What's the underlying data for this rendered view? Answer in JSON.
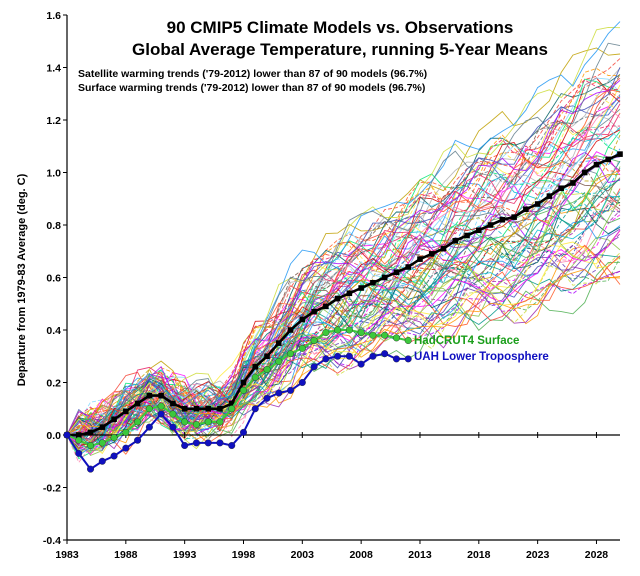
{
  "chart_data": {
    "type": "line",
    "title": "90 CMIP5 Climate Models vs. Observations",
    "subtitle": "Global Average Temperature, running 5-Year Means",
    "annotations": [
      "Satellite warming trends ('79-2012) lower than 87 of 90 models (96.7%)",
      "Surface warming trends ('79-2012) lower than 87 of 90 models (96.7%)"
    ],
    "xlabel": "",
    "ylabel": "Departure from 1979-83 Average (deg. C)",
    "xlim": [
      1983,
      2030
    ],
    "ylim": [
      -0.4,
      1.6
    ],
    "x_ticks": [
      "1983",
      "1988",
      "1993",
      "1998",
      "2003",
      "2008",
      "2013",
      "2018",
      "2023",
      "2028"
    ],
    "y_ticks": [
      "-0.4",
      "-0.2",
      "0.0",
      "0.2",
      "0.4",
      "0.6",
      "0.8",
      "1.0",
      "1.2",
      "1.4",
      "1.6"
    ],
    "grid": false,
    "model_count": 90,
    "model_mean": {
      "color": "#000000",
      "x": [
        1983,
        1984,
        1985,
        1986,
        1987,
        1988,
        1989,
        1990,
        1991,
        1992,
        1993,
        1994,
        1995,
        1996,
        1997,
        1998,
        1999,
        2000,
        2001,
        2002,
        2003,
        2004,
        2005,
        2006,
        2007,
        2008,
        2009,
        2010,
        2011,
        2012,
        2013,
        2014,
        2015,
        2016,
        2017,
        2018,
        2019,
        2020,
        2021,
        2022,
        2023,
        2024,
        2025,
        2026,
        2027,
        2028,
        2029,
        2030
      ],
      "values": [
        0.0,
        0.0,
        0.01,
        0.03,
        0.06,
        0.09,
        0.12,
        0.15,
        0.15,
        0.12,
        0.1,
        0.1,
        0.1,
        0.1,
        0.12,
        0.2,
        0.26,
        0.3,
        0.35,
        0.4,
        0.44,
        0.47,
        0.49,
        0.52,
        0.54,
        0.56,
        0.58,
        0.6,
        0.62,
        0.64,
        0.67,
        0.69,
        0.71,
        0.74,
        0.76,
        0.78,
        0.8,
        0.82,
        0.83,
        0.86,
        0.88,
        0.91,
        0.94,
        0.96,
        1.0,
        1.03,
        1.05,
        1.07
      ]
    },
    "series": [
      {
        "name": "HadCRUT4 Surface",
        "color": "#3cc83c",
        "x": [
          1983,
          1984,
          1985,
          1986,
          1987,
          1988,
          1989,
          1990,
          1991,
          1992,
          1993,
          1994,
          1995,
          1996,
          1997,
          1998,
          1999,
          2000,
          2001,
          2002,
          2003,
          2004,
          2005,
          2006,
          2007,
          2008,
          2009,
          2010,
          2011,
          2012
        ],
        "values": [
          0.0,
          -0.02,
          -0.04,
          -0.03,
          -0.01,
          0.01,
          0.05,
          0.1,
          0.11,
          0.08,
          0.05,
          0.04,
          0.05,
          0.05,
          0.1,
          0.17,
          0.22,
          0.25,
          0.28,
          0.31,
          0.33,
          0.36,
          0.39,
          0.4,
          0.4,
          0.39,
          0.38,
          0.38,
          0.37,
          0.36
        ]
      },
      {
        "name": "UAH Lower Troposphere",
        "color": "#1010c0",
        "x": [
          1983,
          1984,
          1985,
          1986,
          1987,
          1988,
          1989,
          1990,
          1991,
          1992,
          1993,
          1994,
          1995,
          1996,
          1997,
          1998,
          1999,
          2000,
          2001,
          2002,
          2003,
          2004,
          2005,
          2006,
          2007,
          2008,
          2009,
          2010,
          2011,
          2012
        ],
        "values": [
          0.0,
          -0.07,
          -0.13,
          -0.1,
          -0.08,
          -0.05,
          -0.02,
          0.03,
          0.08,
          0.03,
          -0.04,
          -0.03,
          -0.03,
          -0.03,
          -0.04,
          0.01,
          0.1,
          0.14,
          0.16,
          0.17,
          0.2,
          0.26,
          0.29,
          0.3,
          0.3,
          0.27,
          0.3,
          0.31,
          0.29,
          0.29
        ]
      }
    ]
  }
}
